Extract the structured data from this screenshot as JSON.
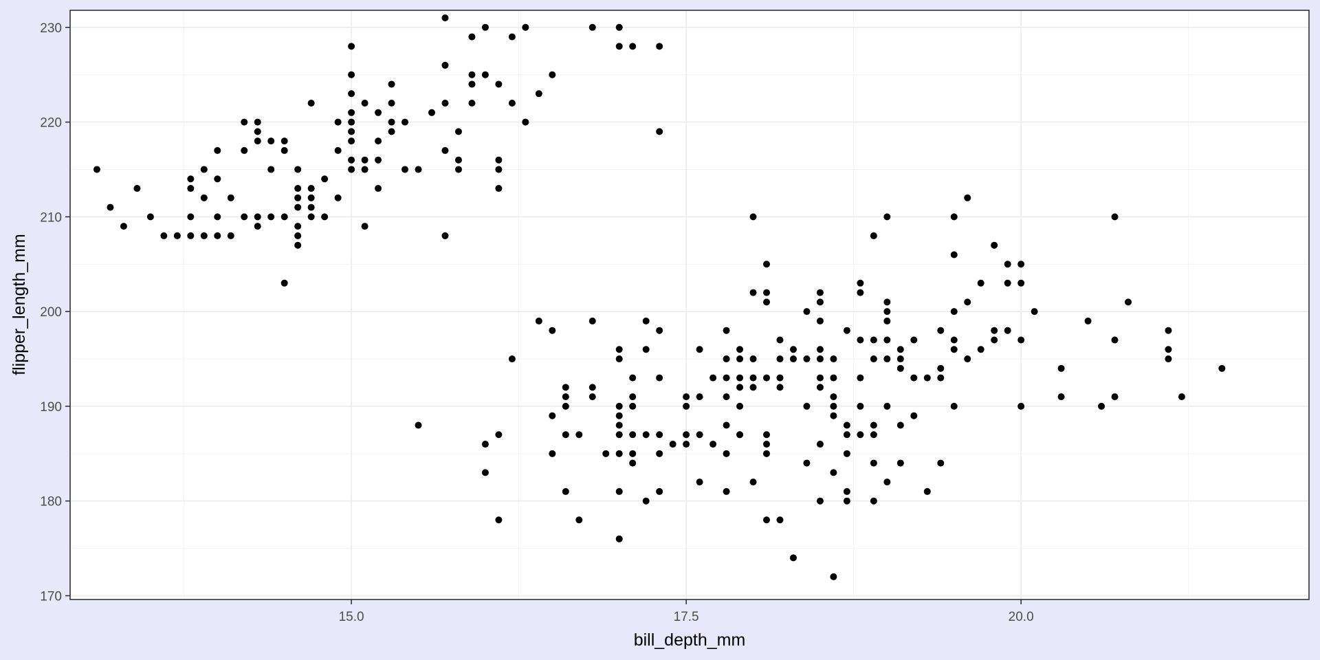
{
  "chart_data": {
    "type": "scatter",
    "xlabel": "bill_depth_mm",
    "ylabel": "flipper_length_mm",
    "xlim": [
      12.9,
      22.15
    ],
    "ylim": [
      169.6,
      231.8
    ],
    "x_ticks": [
      15.0,
      17.5,
      20.0
    ],
    "x_tick_labels": [
      "15.0",
      "17.5",
      "20.0"
    ],
    "y_ticks": [
      170,
      180,
      190,
      200,
      210,
      220,
      230
    ],
    "y_tick_labels": [
      "170",
      "180",
      "190",
      "200",
      "210",
      "220",
      "230"
    ],
    "grid": true,
    "background": "#ffffff",
    "point_color": "#000000",
    "points": [
      [
        13.1,
        215
      ],
      [
        13.2,
        211
      ],
      [
        13.3,
        209
      ],
      [
        13.4,
        213
      ],
      [
        13.5,
        210
      ],
      [
        13.6,
        208
      ],
      [
        13.7,
        208
      ],
      [
        13.8,
        210
      ],
      [
        13.8,
        208
      ],
      [
        13.8,
        213
      ],
      [
        13.8,
        214
      ],
      [
        13.9,
        208
      ],
      [
        13.9,
        212
      ],
      [
        13.9,
        215
      ],
      [
        14.0,
        208
      ],
      [
        14.0,
        210
      ],
      [
        14.0,
        214
      ],
      [
        14.0,
        217
      ],
      [
        14.1,
        208
      ],
      [
        14.1,
        212
      ],
      [
        14.2,
        210
      ],
      [
        14.2,
        217
      ],
      [
        14.2,
        220
      ],
      [
        14.3,
        209
      ],
      [
        14.3,
        210
      ],
      [
        14.3,
        218
      ],
      [
        14.3,
        219
      ],
      [
        14.3,
        220
      ],
      [
        14.4,
        210
      ],
      [
        14.4,
        215
      ],
      [
        14.4,
        218
      ],
      [
        14.5,
        203
      ],
      [
        14.5,
        210
      ],
      [
        14.5,
        217
      ],
      [
        14.5,
        218
      ],
      [
        14.6,
        207
      ],
      [
        14.6,
        208
      ],
      [
        14.6,
        209
      ],
      [
        14.6,
        211
      ],
      [
        14.6,
        212
      ],
      [
        14.6,
        213
      ],
      [
        14.6,
        215
      ],
      [
        14.7,
        210
      ],
      [
        14.7,
        211
      ],
      [
        14.7,
        212
      ],
      [
        14.7,
        213
      ],
      [
        14.7,
        222
      ],
      [
        14.8,
        210
      ],
      [
        14.8,
        214
      ],
      [
        14.9,
        212
      ],
      [
        14.9,
        217
      ],
      [
        14.9,
        220
      ],
      [
        15.0,
        221
      ],
      [
        15.0,
        215
      ],
      [
        15.0,
        216
      ],
      [
        15.0,
        218
      ],
      [
        15.0,
        219
      ],
      [
        15.0,
        220
      ],
      [
        15.0,
        223
      ],
      [
        15.0,
        225
      ],
      [
        15.0,
        228
      ],
      [
        15.1,
        215
      ],
      [
        15.1,
        216
      ],
      [
        15.1,
        209
      ],
      [
        15.1,
        222
      ],
      [
        15.2,
        213
      ],
      [
        15.2,
        216
      ],
      [
        15.2,
        218
      ],
      [
        15.2,
        221
      ],
      [
        15.3,
        219
      ],
      [
        15.3,
        220
      ],
      [
        15.3,
        222
      ],
      [
        15.3,
        224
      ],
      [
        15.4,
        215
      ],
      [
        15.4,
        220
      ],
      [
        15.5,
        215
      ],
      [
        15.5,
        188
      ],
      [
        15.6,
        221
      ],
      [
        15.7,
        208
      ],
      [
        15.7,
        217
      ],
      [
        15.7,
        222
      ],
      [
        15.7,
        226
      ],
      [
        15.7,
        231
      ],
      [
        15.8,
        215
      ],
      [
        15.8,
        216
      ],
      [
        15.8,
        219
      ],
      [
        15.9,
        222
      ],
      [
        15.9,
        224
      ],
      [
        15.9,
        225
      ],
      [
        15.9,
        229
      ],
      [
        16.0,
        225
      ],
      [
        16.0,
        230
      ],
      [
        16.0,
        186
      ],
      [
        16.0,
        183
      ],
      [
        16.1,
        213
      ],
      [
        16.1,
        215
      ],
      [
        16.1,
        216
      ],
      [
        16.1,
        224
      ],
      [
        16.1,
        178
      ],
      [
        16.1,
        187
      ],
      [
        16.2,
        222
      ],
      [
        16.2,
        229
      ],
      [
        16.2,
        195
      ],
      [
        16.3,
        220
      ],
      [
        16.3,
        230
      ],
      [
        16.4,
        223
      ],
      [
        16.4,
        199
      ],
      [
        16.5,
        225
      ],
      [
        16.5,
        198
      ],
      [
        16.5,
        189
      ],
      [
        16.5,
        185
      ],
      [
        16.6,
        192
      ],
      [
        16.6,
        191
      ],
      [
        16.6,
        190
      ],
      [
        16.6,
        187
      ],
      [
        16.6,
        181
      ],
      [
        16.7,
        187
      ],
      [
        16.7,
        178
      ],
      [
        16.8,
        192
      ],
      [
        16.8,
        191
      ],
      [
        16.8,
        199
      ],
      [
        16.8,
        230
      ],
      [
        16.9,
        185
      ],
      [
        17.0,
        185
      ],
      [
        17.0,
        187
      ],
      [
        17.0,
        188
      ],
      [
        17.0,
        189
      ],
      [
        17.0,
        190
      ],
      [
        17.0,
        195
      ],
      [
        17.0,
        196
      ],
      [
        17.0,
        181
      ],
      [
        17.0,
        176
      ],
      [
        17.0,
        228
      ],
      [
        17.0,
        230
      ],
      [
        17.1,
        228
      ],
      [
        17.1,
        193
      ],
      [
        17.1,
        191
      ],
      [
        17.1,
        190
      ],
      [
        17.1,
        187
      ],
      [
        17.1,
        185
      ],
      [
        17.1,
        184
      ],
      [
        17.2,
        199
      ],
      [
        17.2,
        196
      ],
      [
        17.2,
        187
      ],
      [
        17.2,
        180
      ],
      [
        17.3,
        198
      ],
      [
        17.3,
        193
      ],
      [
        17.3,
        187
      ],
      [
        17.3,
        185
      ],
      [
        17.3,
        181
      ],
      [
        17.3,
        219
      ],
      [
        17.3,
        228
      ],
      [
        17.4,
        186
      ],
      [
        17.5,
        191
      ],
      [
        17.5,
        190
      ],
      [
        17.5,
        187
      ],
      [
        17.5,
        186
      ],
      [
        17.6,
        196
      ],
      [
        17.6,
        191
      ],
      [
        17.6,
        187
      ],
      [
        17.6,
        182
      ],
      [
        17.7,
        193
      ],
      [
        17.7,
        186
      ],
      [
        17.8,
        198
      ],
      [
        17.8,
        195
      ],
      [
        17.8,
        193
      ],
      [
        17.8,
        191
      ],
      [
        17.8,
        188
      ],
      [
        17.8,
        185
      ],
      [
        17.8,
        181
      ],
      [
        17.9,
        196
      ],
      [
        17.9,
        195
      ],
      [
        17.9,
        193
      ],
      [
        17.9,
        190
      ],
      [
        17.9,
        187
      ],
      [
        17.9,
        187
      ],
      [
        17.9,
        192
      ],
      [
        18.0,
        210
      ],
      [
        18.0,
        202
      ],
      [
        18.0,
        195
      ],
      [
        18.0,
        193
      ],
      [
        18.0,
        192
      ],
      [
        18.0,
        182
      ],
      [
        18.1,
        205
      ],
      [
        18.1,
        202
      ],
      [
        18.1,
        201
      ],
      [
        18.1,
        193
      ],
      [
        18.1,
        187
      ],
      [
        18.1,
        186
      ],
      [
        18.1,
        185
      ],
      [
        18.1,
        178
      ],
      [
        18.2,
        197
      ],
      [
        18.2,
        195
      ],
      [
        18.2,
        193
      ],
      [
        18.2,
        192
      ],
      [
        18.2,
        178
      ],
      [
        18.3,
        196
      ],
      [
        18.3,
        195
      ],
      [
        18.3,
        174
      ],
      [
        18.4,
        200
      ],
      [
        18.4,
        195
      ],
      [
        18.4,
        190
      ],
      [
        18.4,
        184
      ],
      [
        18.5,
        202
      ],
      [
        18.5,
        201
      ],
      [
        18.5,
        199
      ],
      [
        18.5,
        196
      ],
      [
        18.5,
        195
      ],
      [
        18.5,
        193
      ],
      [
        18.5,
        192
      ],
      [
        18.5,
        186
      ],
      [
        18.5,
        180
      ],
      [
        18.6,
        195
      ],
      [
        18.6,
        193
      ],
      [
        18.6,
        191
      ],
      [
        18.6,
        190
      ],
      [
        18.6,
        189
      ],
      [
        18.6,
        183
      ],
      [
        18.6,
        172
      ],
      [
        18.7,
        198
      ],
      [
        18.7,
        187
      ],
      [
        18.7,
        185
      ],
      [
        18.7,
        181
      ],
      [
        18.7,
        180
      ],
      [
        18.7,
        188
      ],
      [
        18.8,
        203
      ],
      [
        18.8,
        202
      ],
      [
        18.8,
        197
      ],
      [
        18.8,
        193
      ],
      [
        18.8,
        190
      ],
      [
        18.8,
        187
      ],
      [
        18.9,
        208
      ],
      [
        18.9,
        197
      ],
      [
        18.9,
        195
      ],
      [
        18.9,
        188
      ],
      [
        18.9,
        187
      ],
      [
        18.9,
        184
      ],
      [
        18.9,
        180
      ],
      [
        19.0,
        210
      ],
      [
        19.0,
        201
      ],
      [
        19.0,
        200
      ],
      [
        19.0,
        199
      ],
      [
        19.0,
        197
      ],
      [
        19.0,
        195
      ],
      [
        19.0,
        190
      ],
      [
        19.0,
        182
      ],
      [
        19.1,
        196
      ],
      [
        19.1,
        195
      ],
      [
        19.1,
        194
      ],
      [
        19.1,
        188
      ],
      [
        19.1,
        184
      ],
      [
        19.2,
        197
      ],
      [
        19.2,
        193
      ],
      [
        19.2,
        189
      ],
      [
        19.3,
        193
      ],
      [
        19.3,
        181
      ],
      [
        19.4,
        198
      ],
      [
        19.4,
        194
      ],
      [
        19.4,
        193
      ],
      [
        19.4,
        184
      ],
      [
        19.5,
        210
      ],
      [
        19.5,
        206
      ],
      [
        19.5,
        200
      ],
      [
        19.5,
        197
      ],
      [
        19.5,
        196
      ],
      [
        19.5,
        190
      ],
      [
        19.6,
        212
      ],
      [
        19.6,
        201
      ],
      [
        19.6,
        195
      ],
      [
        19.7,
        203
      ],
      [
        19.7,
        196
      ],
      [
        19.8,
        207
      ],
      [
        19.8,
        198
      ],
      [
        19.8,
        197
      ],
      [
        19.9,
        205
      ],
      [
        19.9,
        203
      ],
      [
        19.9,
        198
      ],
      [
        20.0,
        205
      ],
      [
        20.0,
        203
      ],
      [
        20.0,
        197
      ],
      [
        20.0,
        190
      ],
      [
        20.1,
        200
      ],
      [
        20.3,
        194
      ],
      [
        20.3,
        191
      ],
      [
        20.5,
        199
      ],
      [
        20.6,
        190
      ],
      [
        20.7,
        210
      ],
      [
        20.7,
        197
      ],
      [
        20.7,
        191
      ],
      [
        20.8,
        201
      ],
      [
        21.1,
        198
      ],
      [
        21.1,
        196
      ],
      [
        21.1,
        195
      ],
      [
        21.2,
        191
      ],
      [
        21.5,
        194
      ]
    ]
  }
}
